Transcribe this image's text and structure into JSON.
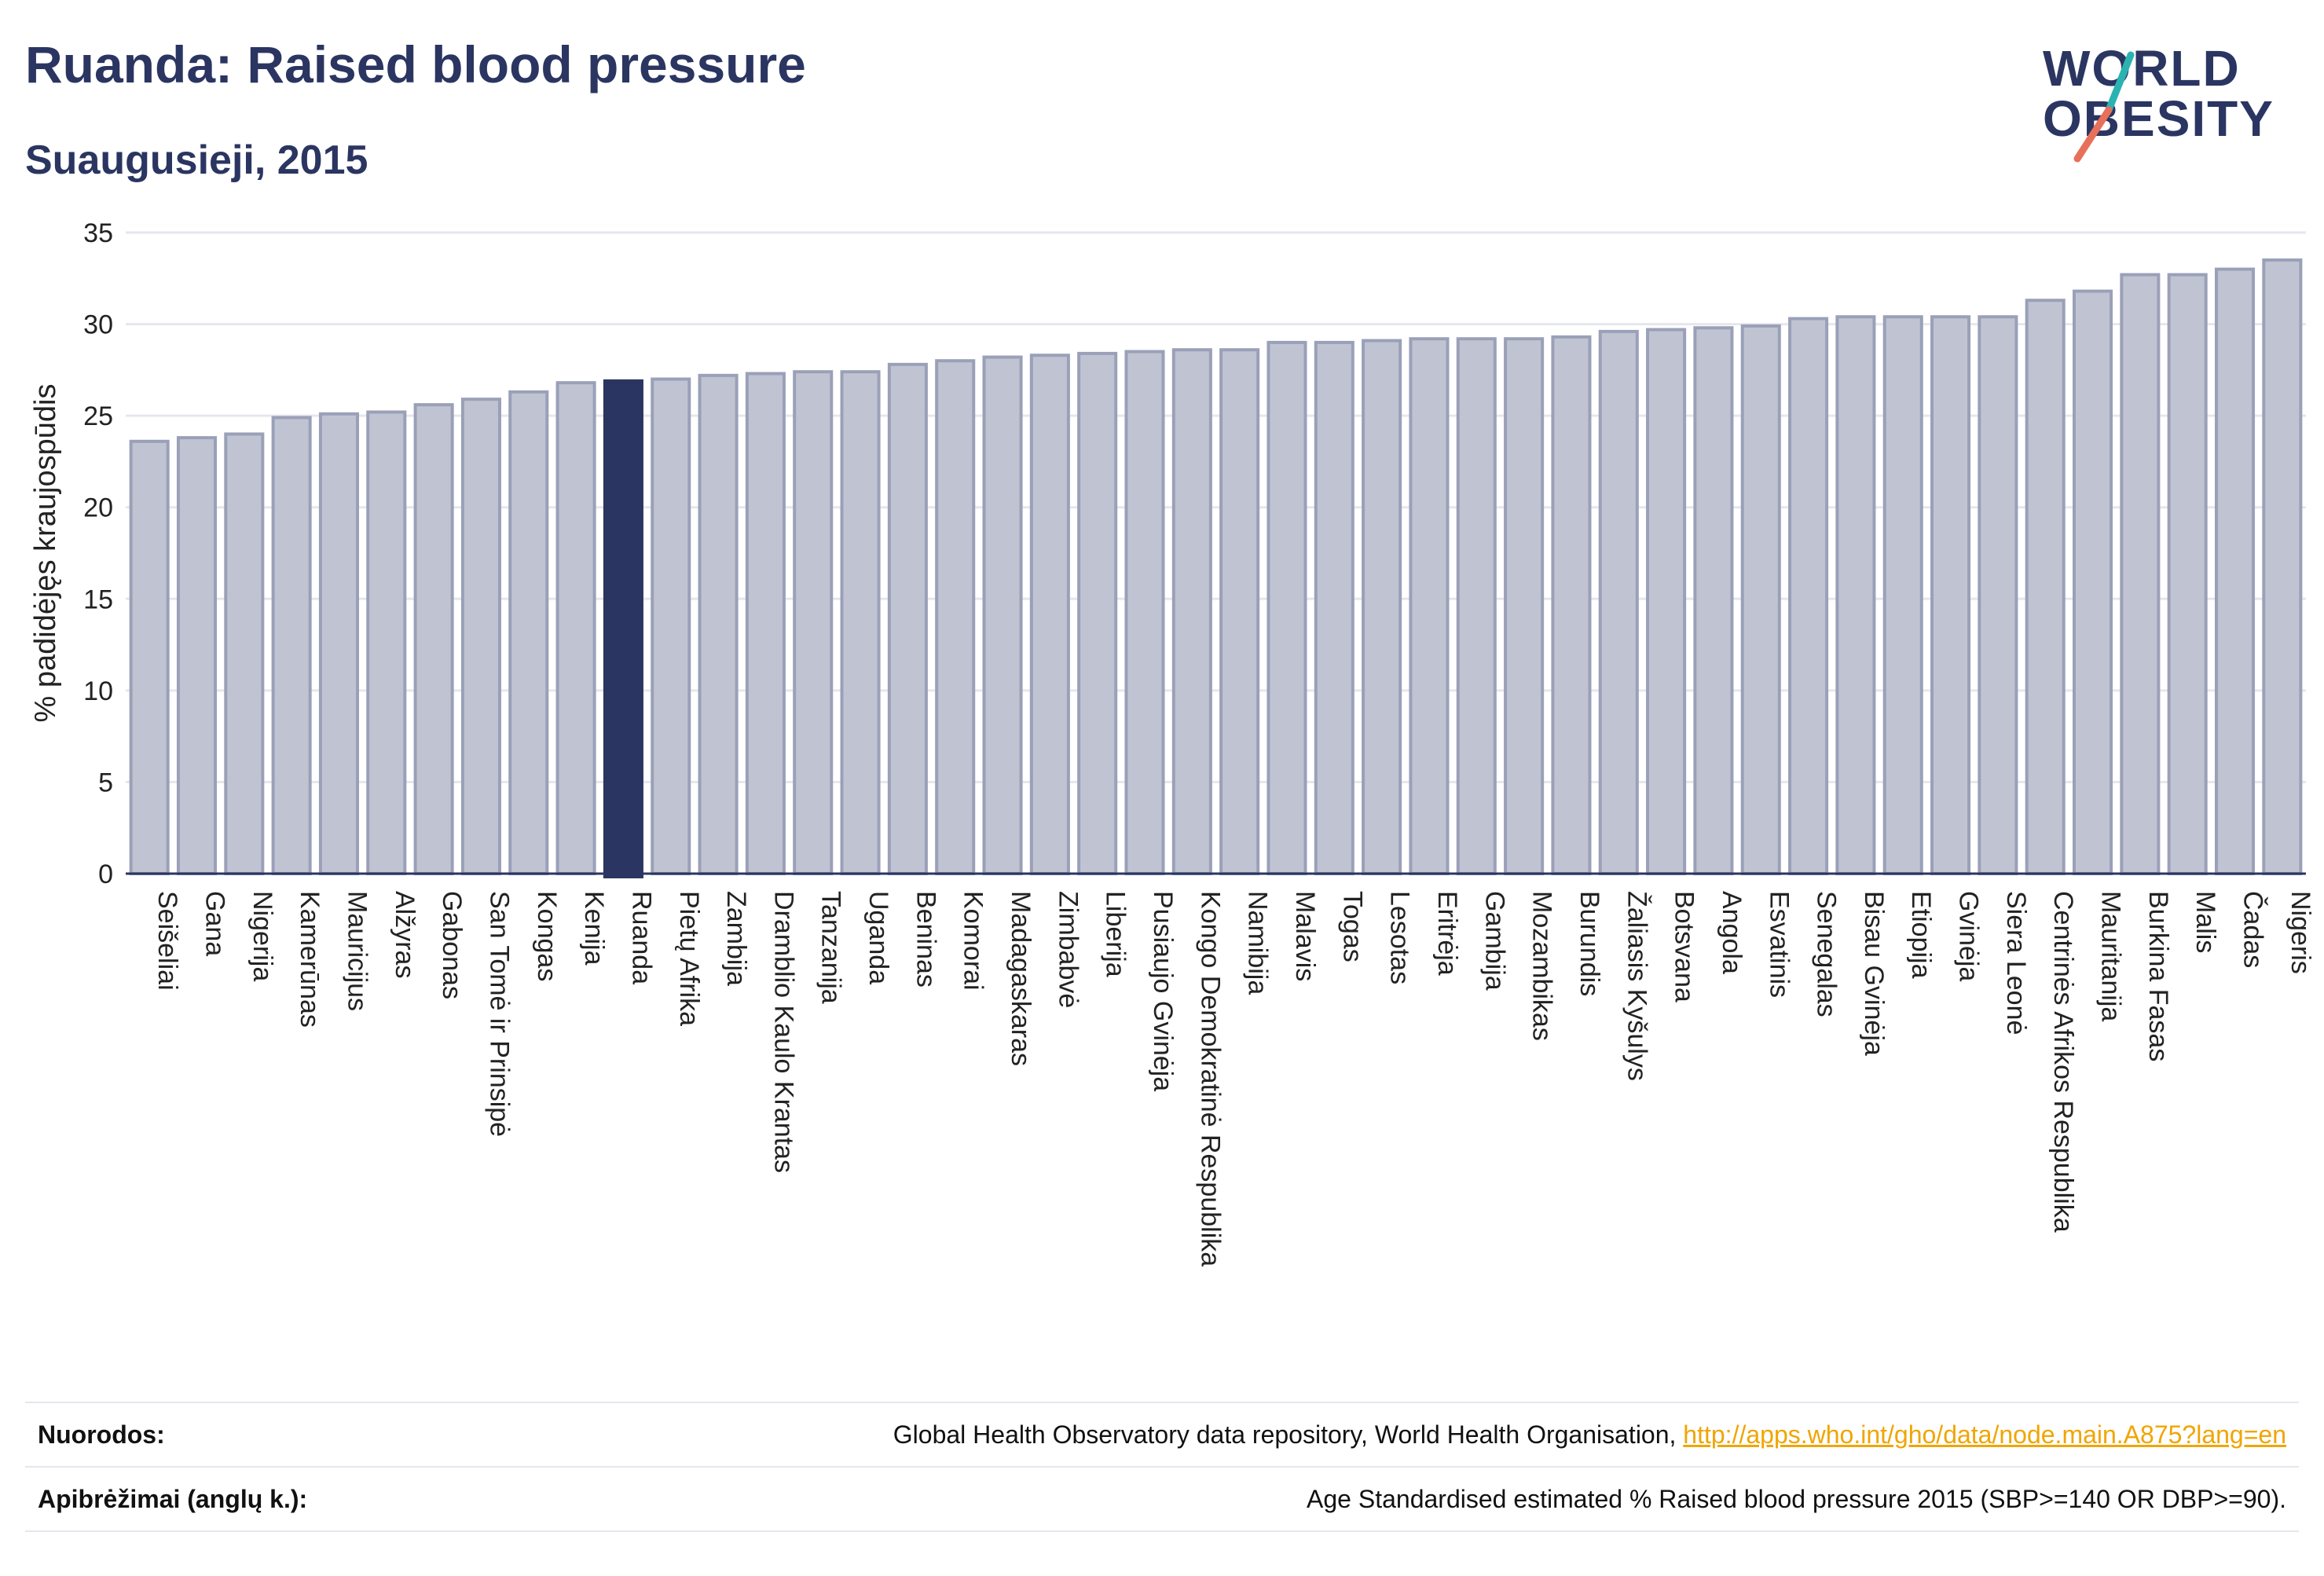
{
  "header": {
    "title": "Ruanda: Raised blood pressure",
    "subtitle": "Suaugusieji, 2015"
  },
  "logo": {
    "line1": "WORLD",
    "line2": "OBESITY",
    "colors": {
      "text": "#2b3561",
      "slash_top": "#2bb3b1",
      "slash_bottom": "#e8705b"
    }
  },
  "colors": {
    "bar": "#c0c4d2",
    "bar_stroke": "#9aa0b8",
    "highlight": "#2b3561",
    "grid": "#e6e6ee",
    "baseline": "#2b3561"
  },
  "chart_data": {
    "type": "bar",
    "title": "Ruanda: Raised blood pressure",
    "subtitle": "Suaugusieji, 2015",
    "xlabel": "",
    "ylabel": "% padidėjęs kraujospūdis",
    "ylim": [
      0,
      35
    ],
    "yticks": [
      0,
      5,
      10,
      15,
      20,
      25,
      30,
      35
    ],
    "grid": true,
    "highlight": "Ruanda",
    "categories": [
      "Seišeliai",
      "Gana",
      "Nigerija",
      "Kamerūnas",
      "Mauricijus",
      "Alžyras",
      "Gabonas",
      "San Tomė ir Prinsipė",
      "Kongas",
      "Kenija",
      "Ruanda",
      "Pietų Afrika",
      "Zambija",
      "Dramblio Kaulo Krantas",
      "Tanzanija",
      "Uganda",
      "Beninas",
      "Komorai",
      "Madagaskaras",
      "Zimbabvė",
      "Liberija",
      "Pusiaujo Gvinėja",
      "Kongo Demokratinė Respublika",
      "Namibija",
      "Malavis",
      "Togas",
      "Lesotas",
      "Eritrėja",
      "Gambija",
      "Mozambikas",
      "Burundis",
      "Žaliasis Kyšulys",
      "Botsvana",
      "Angola",
      "Esvatinis",
      "Senegalas",
      "Bisau Gvinėja",
      "Etiopija",
      "Gvinėja",
      "Siera Leonė",
      "Centrinės Afrikos Respublika",
      "Mauritanija",
      "Burkina Fasas",
      "Malis",
      "Čadas",
      "Nigeris"
    ],
    "values": [
      23.6,
      23.8,
      24.0,
      24.9,
      25.1,
      25.2,
      25.6,
      25.9,
      26.3,
      26.8,
      26.9,
      27.0,
      27.2,
      27.3,
      27.4,
      27.4,
      27.8,
      28.0,
      28.2,
      28.3,
      28.4,
      28.5,
      28.6,
      28.6,
      29.0,
      29.0,
      29.1,
      29.2,
      29.2,
      29.2,
      29.3,
      29.6,
      29.7,
      29.8,
      29.9,
      30.3,
      30.4,
      30.4,
      30.4,
      30.4,
      31.3,
      31.8,
      32.7,
      32.7,
      33.0,
      33.5
    ]
  },
  "footer": {
    "references_label": "Nuorodos:",
    "references_text": "Global Health Observatory data repository, World Health Organisation, ",
    "references_link": "http://apps.who.int/gho/data/node.main.A875?lang=en",
    "definitions_label": "Apibrėžimai (anglų k.):",
    "definitions_text": "Age Standardised estimated % Raised blood pressure 2015 (SBP>=140 OR DBP>=90)."
  }
}
